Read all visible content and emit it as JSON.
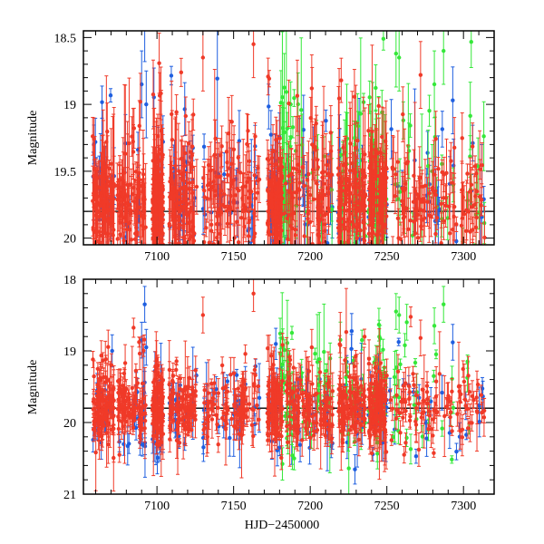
{
  "chart_data": [
    {
      "type": "scatter",
      "panel": "top",
      "title": "",
      "xlabel": "",
      "ylabel": "Magnitude",
      "xlim": [
        7052,
        7320
      ],
      "ylim": [
        20.05,
        18.45
      ],
      "y_inverted": true,
      "xticks": [
        7100,
        7150,
        7200,
        7250,
        7300
      ],
      "xtick_labels": [
        "7100",
        "7150",
        "7200",
        "7250",
        "7300"
      ],
      "show_xtick_labels": true,
      "yticks": [
        18.5,
        19,
        19.5,
        20
      ],
      "ytick_labels": [
        "18.5",
        "19",
        "19.5",
        "20"
      ],
      "reference_line_y": 19.8,
      "series": [
        {
          "name": "blue",
          "color": "#1f5fe0",
          "seed": 11,
          "n": 220,
          "mean": 19.72,
          "spread": 0.22,
          "outliers": [
            [
              7090,
              18.85
            ],
            [
              7092,
              18.43
            ],
            [
              7093,
              19.0
            ],
            [
              7293,
              18.97
            ]
          ]
        },
        {
          "name": "green",
          "color": "#35e83a",
          "seed": 23,
          "n": 150,
          "mean": 19.62,
          "spread": 0.3,
          "xmin": 7180,
          "outliers": [
            [
              7256,
              18.62
            ],
            [
              7258,
              18.65
            ],
            [
              7281,
              18.85
            ],
            [
              7287,
              18.6
            ]
          ]
        },
        {
          "name": "red",
          "color": "#f03a28",
          "seed": 37,
          "n": 950,
          "mean": 19.72,
          "spread": 0.18,
          "outliers": [
            [
              7130,
              18.65
            ],
            [
              7163,
              18.55
            ],
            [
              7201,
              18.88
            ],
            [
              7272,
              18.78
            ]
          ]
        }
      ]
    },
    {
      "type": "scatter",
      "panel": "bottom",
      "title": "",
      "xlabel": "HJD−2450000",
      "ylabel": "Magnitude",
      "xlim": [
        7052,
        7320
      ],
      "ylim": [
        21.0,
        18.0
      ],
      "y_inverted": true,
      "xticks": [
        7100,
        7150,
        7200,
        7250,
        7300
      ],
      "xtick_labels": [
        "7100",
        "7150",
        "7200",
        "7250",
        "7300"
      ],
      "show_xtick_labels": true,
      "yticks": [
        18,
        19,
        20,
        21
      ],
      "ytick_labels": [
        "18",
        "19",
        "20",
        "21"
      ],
      "reference_line_y": 19.8,
      "series": [
        {
          "name": "blue",
          "color": "#1f5fe0",
          "seed": 41,
          "n": 220,
          "mean": 19.85,
          "spread": 0.3,
          "outliers": [
            [
              7090,
              18.85
            ],
            [
              7092,
              18.35
            ],
            [
              7093,
              18.95
            ],
            [
              7293,
              18.88
            ]
          ]
        },
        {
          "name": "green",
          "color": "#35e83a",
          "seed": 53,
          "n": 150,
          "mean": 19.65,
          "spread": 0.4,
          "xmin": 7180,
          "outliers": [
            [
              7256,
              18.45
            ],
            [
              7258,
              18.5
            ],
            [
              7263,
              18.6
            ],
            [
              7281,
              18.65
            ],
            [
              7287,
              18.35
            ]
          ]
        },
        {
          "name": "red",
          "color": "#f03a28",
          "seed": 67,
          "n": 950,
          "mean": 19.8,
          "spread": 0.22,
          "outliers": [
            [
              7130,
              18.5
            ],
            [
              7163,
              18.2
            ],
            [
              7201,
              18.95
            ],
            [
              7272,
              18.82
            ]
          ]
        }
      ]
    }
  ]
}
